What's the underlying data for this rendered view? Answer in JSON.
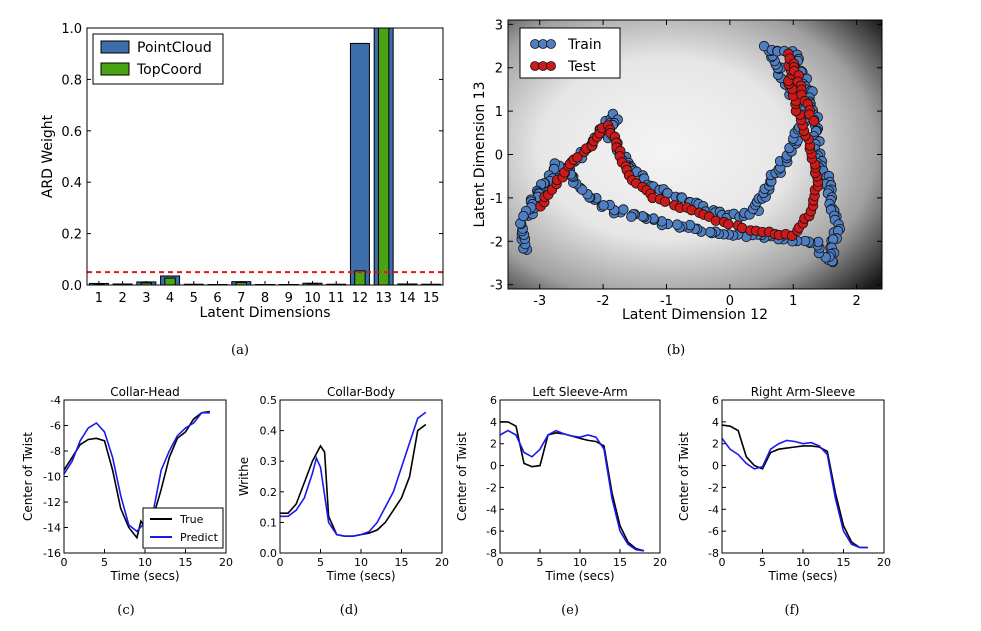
{
  "chart_data": [
    {
      "type": "bar",
      "panel_caption": "(a)",
      "xlabel": "Latent Dimensions",
      "ylabel": "ARD Weight",
      "ylim": [
        0,
        1.0
      ],
      "yticks": [
        "0.0",
        "0.2",
        "0.4",
        "0.6",
        "0.8",
        "1.0"
      ],
      "categories": [
        "1",
        "2",
        "3",
        "4",
        "5",
        "6",
        "7",
        "8",
        "9",
        "10",
        "11",
        "12",
        "13",
        "14",
        "15"
      ],
      "series": [
        {
          "name": "PointCloud",
          "color": "#3b6eaa",
          "values": [
            0.006,
            0.004,
            0.012,
            0.035,
            0.003,
            0.002,
            0.013,
            0.002,
            0.002,
            0.007,
            0.003,
            0.94,
            1.0,
            0.004,
            0.003
          ]
        },
        {
          "name": "TopCoord",
          "color": "#4aa215",
          "values": [
            0.004,
            0.003,
            0.008,
            0.027,
            0.002,
            0.001,
            0.01,
            0.001,
            0.001,
            0.005,
            0.002,
            0.055,
            1.0,
            0.002,
            0.002
          ]
        }
      ],
      "threshold": 0.05,
      "threshold_color": "#e8141a",
      "legend_position": "top-left"
    },
    {
      "type": "scatter",
      "panel_caption": "(b)",
      "xlabel": "Latent Dimension 12",
      "ylabel": "Latent Dimension 13",
      "xlim": [
        -3.5,
        2.4
      ],
      "ylim": [
        -3.1,
        3.1
      ],
      "xticks": [
        "-3",
        "-2",
        "-1",
        "0",
        "1",
        "2"
      ],
      "yticks": [
        "3",
        "2",
        "1",
        "0",
        "-1",
        "-2",
        "-3"
      ],
      "legend_position": "top-left",
      "series": [
        {
          "name": "Train",
          "color": "#4f7fc2",
          "path": [
            [
              -3.2,
              -2.2
            ],
            [
              -3.3,
              -1.6
            ],
            [
              -3.1,
              -1.2
            ],
            [
              -2.8,
              -0.6
            ],
            [
              -2.4,
              -0.1
            ],
            [
              -2.1,
              0.4
            ],
            [
              -1.8,
              0.9
            ],
            [
              -1.9,
              0.5
            ],
            [
              -1.5,
              -0.4
            ],
            [
              -1.0,
              -0.9
            ],
            [
              -0.5,
              -1.2
            ],
            [
              0.0,
              -1.45
            ],
            [
              0.4,
              -1.3
            ],
            [
              0.5,
              -1.0
            ],
            [
              0.7,
              -0.5
            ],
            [
              1.0,
              0.2
            ],
            [
              1.2,
              1.0
            ],
            [
              0.9,
              1.6
            ],
            [
              0.6,
              2.5
            ],
            [
              1.0,
              2.3
            ],
            [
              1.3,
              1.4
            ],
            [
              1.4,
              0.0
            ],
            [
              1.6,
              -1.0
            ],
            [
              1.7,
              -1.6
            ],
            [
              1.6,
              -2.5
            ],
            [
              1.3,
              -2.0
            ],
            [
              1.0,
              -1.95
            ],
            [
              0.2,
              -1.85
            ],
            [
              -0.6,
              -1.7
            ],
            [
              -1.3,
              -1.5
            ],
            [
              -1.8,
              -1.3
            ],
            [
              -2.2,
              -1.0
            ],
            [
              -2.5,
              -0.5
            ],
            [
              -2.7,
              -0.2
            ],
            [
              -3.0,
              -0.8
            ],
            [
              -3.2,
              -1.4
            ]
          ]
        },
        {
          "name": "Test",
          "color": "#cc1a1a",
          "path": [
            [
              -3.0,
              -1.2
            ],
            [
              -2.8,
              -0.8
            ],
            [
              -2.5,
              -0.2
            ],
            [
              -2.2,
              0.2
            ],
            [
              -1.95,
              0.7
            ],
            [
              -1.8,
              0.3
            ],
            [
              -1.6,
              -0.5
            ],
            [
              -1.2,
              -1.0
            ],
            [
              -0.6,
              -1.3
            ],
            [
              0.0,
              -1.6
            ],
            [
              0.5,
              -1.8
            ],
            [
              1.0,
              -1.85
            ],
            [
              1.3,
              -1.3
            ],
            [
              1.4,
              -0.6
            ],
            [
              1.3,
              0.0
            ],
            [
              1.1,
              0.8
            ],
            [
              0.95,
              1.6
            ],
            [
              0.95,
              2.3
            ],
            [
              1.1,
              1.6
            ],
            [
              1.3,
              0.8
            ]
          ]
        }
      ]
    },
    {
      "type": "line",
      "panel_caption": "(c)",
      "title": "Collar-Head",
      "xlabel": "Time (secs)",
      "ylabel": "Center of Twist",
      "xlim": [
        0,
        20
      ],
      "ylim": [
        -16,
        -4
      ],
      "xticks": [
        "0",
        "5",
        "10",
        "15",
        "20"
      ],
      "yticks": [
        "-4",
        "-6",
        "-8",
        "-10",
        "-12",
        "-14",
        "-16"
      ],
      "legend_position": "bottom-right",
      "series": [
        {
          "name": "True",
          "color": "#000000",
          "x": [
            0,
            1,
            2,
            3,
            4,
            5,
            6,
            7,
            8,
            9,
            9.5,
            10,
            11,
            12,
            13,
            14,
            15,
            16,
            17,
            18
          ],
          "y": [
            -9.5,
            -8.5,
            -7.5,
            -7.1,
            -7.0,
            -7.2,
            -9.5,
            -12.5,
            -14.0,
            -14.8,
            -13.5,
            -14.0,
            -13.2,
            -11.0,
            -8.5,
            -7.0,
            -6.5,
            -5.5,
            -5.0,
            -4.9
          ]
        },
        {
          "name": "Predict",
          "color": "#1a1af0",
          "x": [
            0,
            1,
            2,
            3,
            4,
            5,
            6,
            7,
            8,
            9,
            10,
            11,
            12,
            13,
            14,
            15,
            16,
            17,
            18
          ],
          "y": [
            -9.8,
            -8.8,
            -7.2,
            -6.2,
            -5.8,
            -6.5,
            -8.5,
            -11.5,
            -13.8,
            -14.3,
            -13.6,
            -12.8,
            -9.5,
            -8.0,
            -6.8,
            -6.2,
            -5.8,
            -5.0,
            -5.0
          ]
        }
      ]
    },
    {
      "type": "line",
      "panel_caption": "(d)",
      "title": "Collar-Body",
      "xlabel": "Time (secs)",
      "ylabel": "Writhe",
      "xlim": [
        0,
        20
      ],
      "ylim": [
        0,
        0.5
      ],
      "xticks": [
        "0",
        "5",
        "10",
        "15",
        "20"
      ],
      "yticks": [
        "0.0",
        "0.1",
        "0.2",
        "0.3",
        "0.4",
        "0.5"
      ],
      "series": [
        {
          "name": "True",
          "color": "#000000",
          "x": [
            0,
            1,
            2,
            3,
            4,
            5,
            5.5,
            6,
            7,
            8,
            9,
            10,
            11,
            12,
            13,
            14,
            15,
            16,
            17,
            18
          ],
          "y": [
            0.13,
            0.13,
            0.16,
            0.23,
            0.3,
            0.35,
            0.33,
            0.12,
            0.06,
            0.055,
            0.055,
            0.06,
            0.065,
            0.075,
            0.1,
            0.14,
            0.18,
            0.25,
            0.4,
            0.42
          ]
        },
        {
          "name": "Predict",
          "color": "#1a1af0",
          "x": [
            0,
            1,
            2,
            3,
            4,
            4.5,
            5,
            6,
            7,
            8,
            9,
            10,
            11,
            12,
            13,
            14,
            15,
            16,
            17,
            18
          ],
          "y": [
            0.12,
            0.12,
            0.14,
            0.18,
            0.26,
            0.31,
            0.28,
            0.1,
            0.06,
            0.055,
            0.055,
            0.06,
            0.07,
            0.1,
            0.15,
            0.2,
            0.28,
            0.36,
            0.44,
            0.46
          ]
        }
      ]
    },
    {
      "type": "line",
      "panel_caption": "(e)",
      "title": "Left Sleeve-Arm",
      "xlabel": "Time (secs)",
      "ylabel": "Center of Twist",
      "xlim": [
        0,
        20
      ],
      "ylim": [
        -8,
        6
      ],
      "xticks": [
        "0",
        "5",
        "10",
        "15",
        "20"
      ],
      "yticks": [
        "6",
        "4",
        "2",
        "0",
        "-2",
        "-4",
        "-6",
        "-8"
      ],
      "series": [
        {
          "name": "True",
          "color": "#000000",
          "x": [
            0,
            1,
            2,
            3,
            4,
            5,
            6,
            7,
            8,
            9,
            10,
            11,
            12,
            13,
            14,
            15,
            16,
            17,
            18
          ],
          "y": [
            4.0,
            4.0,
            3.6,
            0.2,
            -0.1,
            0.0,
            2.8,
            3.0,
            2.9,
            2.7,
            2.5,
            2.3,
            2.2,
            1.8,
            -2.5,
            -5.5,
            -7.0,
            -7.6,
            -7.8
          ]
        },
        {
          "name": "Predict",
          "color": "#1a1af0",
          "x": [
            0,
            1,
            2,
            3,
            4,
            5,
            6,
            7,
            8,
            9,
            10,
            11,
            12,
            13,
            14,
            15,
            16,
            17,
            18
          ],
          "y": [
            2.8,
            3.2,
            2.8,
            1.2,
            0.8,
            1.5,
            2.8,
            3.2,
            2.9,
            2.7,
            2.6,
            2.8,
            2.6,
            1.5,
            -3.0,
            -6.0,
            -7.2,
            -7.7,
            -7.8
          ]
        }
      ]
    },
    {
      "type": "line",
      "panel_caption": "(f)",
      "title": "Right Arm-Sleeve",
      "xlabel": "Time (secs)",
      "ylabel": "Center of Twist",
      "xlim": [
        0,
        20
      ],
      "ylim": [
        -8,
        6
      ],
      "xticks": [
        "0",
        "5",
        "10",
        "15",
        "20"
      ],
      "yticks": [
        "6",
        "4",
        "2",
        "0",
        "-2",
        "-4",
        "-6",
        "-8"
      ],
      "series": [
        {
          "name": "True",
          "color": "#000000",
          "x": [
            0,
            1,
            2,
            3,
            4,
            5,
            6,
            7,
            8,
            9,
            10,
            11,
            12,
            13,
            14,
            15,
            16,
            17,
            18
          ],
          "y": [
            3.7,
            3.6,
            3.2,
            0.8,
            0.0,
            -0.3,
            1.2,
            1.5,
            1.6,
            1.7,
            1.8,
            1.8,
            1.7,
            1.3,
            -2.5,
            -5.5,
            -7.0,
            -7.5,
            -7.5
          ]
        },
        {
          "name": "Predict",
          "color": "#1a1af0",
          "x": [
            0,
            1,
            2,
            3,
            4,
            5,
            6,
            7,
            8,
            9,
            10,
            11,
            12,
            13,
            14,
            15,
            16,
            17,
            18
          ],
          "y": [
            2.5,
            1.5,
            1.0,
            0.2,
            -0.3,
            -0.1,
            1.5,
            2.0,
            2.3,
            2.2,
            2.0,
            2.1,
            1.8,
            1.0,
            -3.0,
            -6.0,
            -7.2,
            -7.5,
            -7.5
          ]
        }
      ]
    }
  ]
}
